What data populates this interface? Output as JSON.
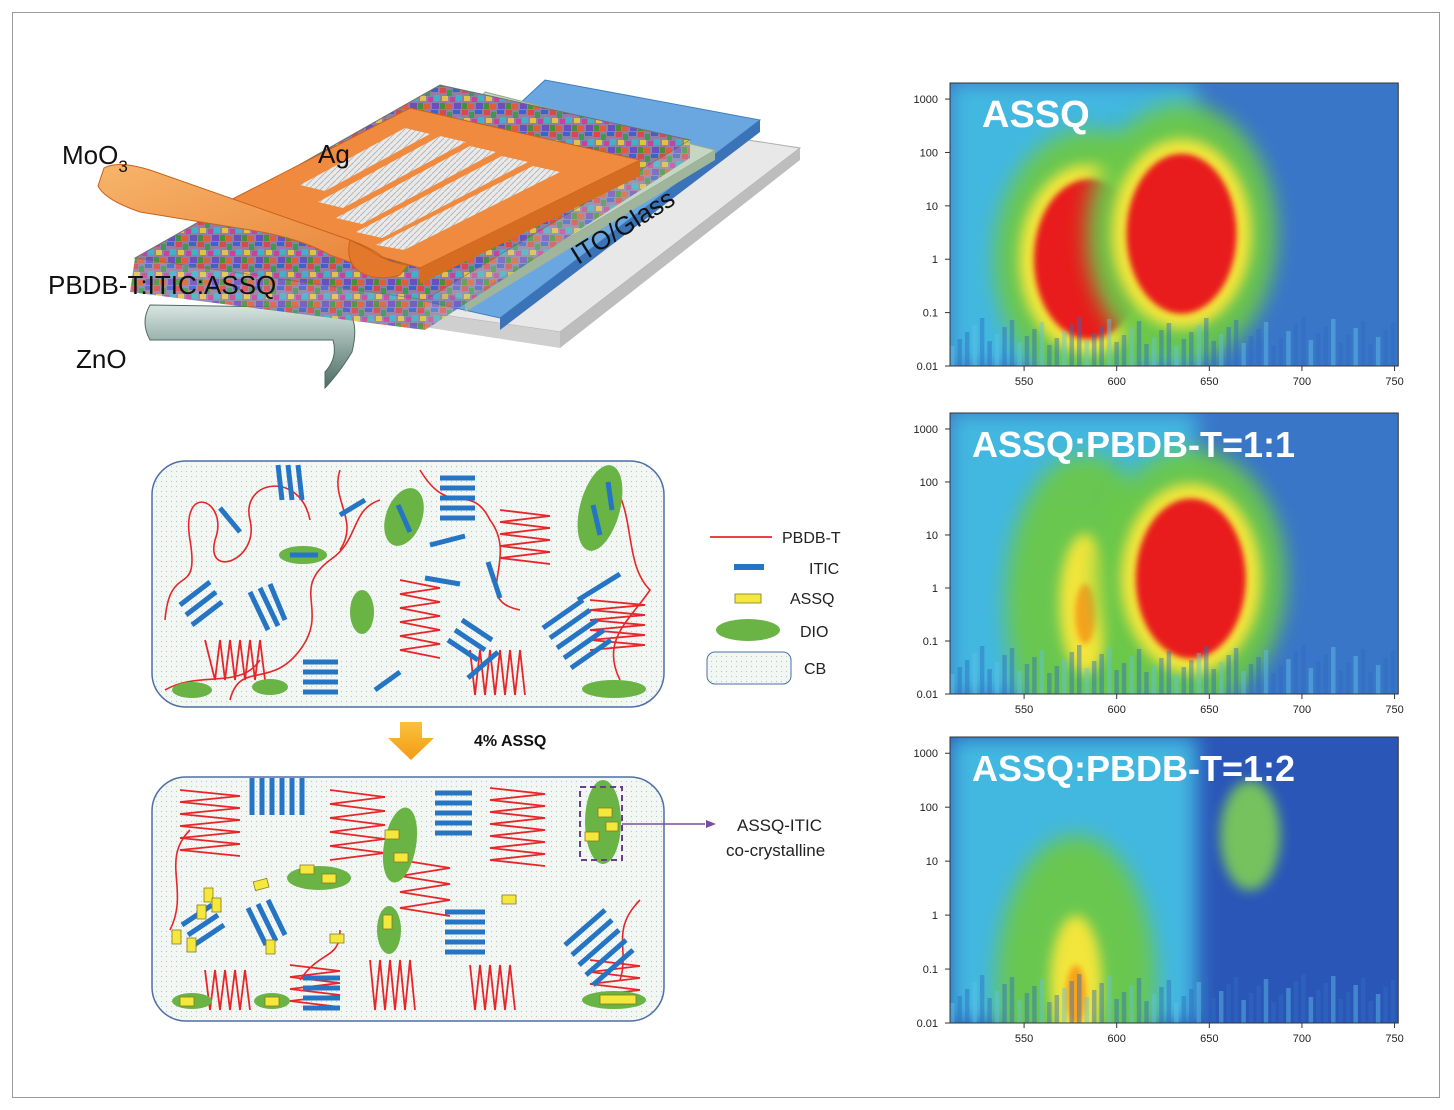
{
  "device": {
    "layers": {
      "moo3_prefix": "MoO",
      "moo3_sub": "3",
      "ag": "Ag",
      "active": "PBDB-T:ITIC:ASSQ",
      "zno": "ZnO",
      "ito": "ITO/Glass"
    }
  },
  "morphology": {
    "legend": [
      {
        "key": "pbdbt",
        "label": "PBDB-T",
        "color": "#e8262a"
      },
      {
        "key": "itic",
        "label": "ITIC",
        "color": "#2575c4"
      },
      {
        "key": "assq",
        "label": "ASSQ",
        "color": "#f5e83c"
      },
      {
        "key": "dio",
        "label": "DIO",
        "color": "#6ab446"
      },
      {
        "key": "cb",
        "label": "CB",
        "color": "#eef4f2"
      }
    ],
    "arrow_label": "4% ASSQ",
    "callout": {
      "line1": "ASSQ-ITIC",
      "line2": "co-crystalline"
    }
  },
  "chart_data": [
    {
      "type": "heatmap",
      "title": "ASSQ",
      "x_ticks": [
        "550",
        "600",
        "650",
        "700",
        "750"
      ],
      "y_ticks": [
        "1000",
        "100",
        "10",
        "1",
        "0.1",
        "0.01"
      ],
      "xlim": [
        510,
        752
      ],
      "ylim": [
        0.01,
        2000
      ],
      "y_scale": "log",
      "features": [
        {
          "level": "high",
          "x": 585,
          "y": 1
        },
        {
          "level": "high",
          "x": 635,
          "y": 3
        }
      ]
    },
    {
      "type": "heatmap",
      "title": "ASSQ:PBDB-T=1:1",
      "x_ticks": [
        "550",
        "600",
        "650",
        "700",
        "750"
      ],
      "y_ticks": [
        "1000",
        "100",
        "10",
        "1",
        "0.1",
        "0.01"
      ],
      "xlim": [
        510,
        752
      ],
      "ylim": [
        0.01,
        2000
      ],
      "y_scale": "log",
      "features": [
        {
          "level": "medium",
          "x": 583,
          "y": 0.5
        },
        {
          "level": "high",
          "x": 640,
          "y": 1.5
        }
      ]
    },
    {
      "type": "heatmap",
      "title": "ASSQ:PBDB-T=1:2",
      "x_ticks": [
        "550",
        "600",
        "650",
        "700",
        "750"
      ],
      "y_ticks": [
        "1000",
        "100",
        "10",
        "1",
        "0.1",
        "0.01"
      ],
      "xlim": [
        510,
        752
      ],
      "ylim": [
        0.01,
        2000
      ],
      "y_scale": "log",
      "features": [
        {
          "level": "medium",
          "x": 578,
          "y": 0.05
        },
        {
          "level": "low",
          "x": 672,
          "y": 30
        }
      ]
    }
  ]
}
